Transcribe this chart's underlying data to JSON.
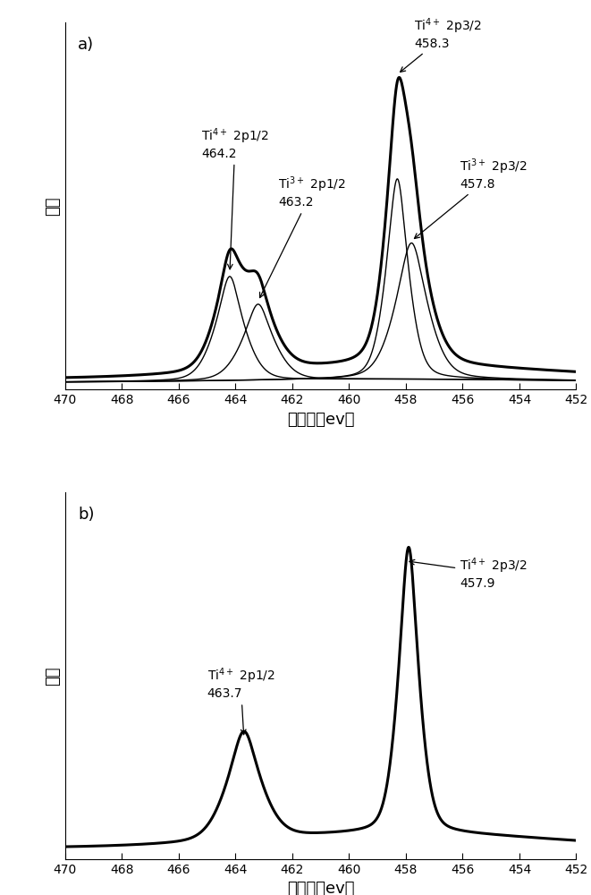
{
  "panel_a_label": "a)",
  "panel_b_label": "b)",
  "xlabel": "结合能（ev）",
  "ylabel": "强度",
  "xlim": [
    470,
    452
  ],
  "xticks": [
    470,
    468,
    466,
    464,
    462,
    460,
    458,
    456,
    454,
    452
  ],
  "background_color": "#ffffff",
  "line_color": "#000000",
  "thick_lw": 2.2,
  "thin_lw": 1.0,
  "fontsize_label": 13,
  "fontsize_annot": 10,
  "fontsize_panel": 13
}
